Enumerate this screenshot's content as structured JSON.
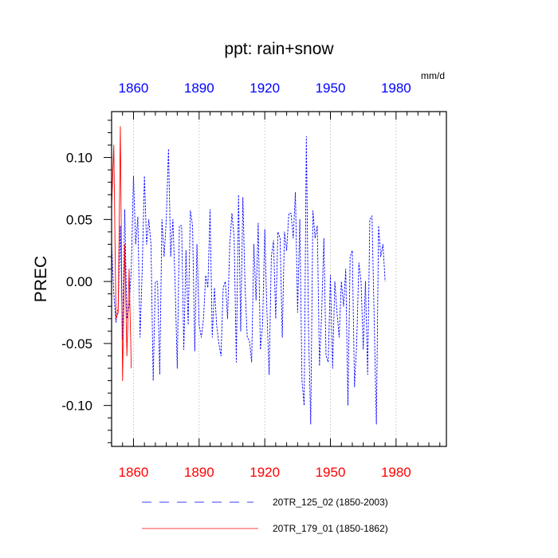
{
  "chart_data": {
    "type": "line",
    "title": "ppt: rain+snow",
    "units": "mm/d",
    "ylabel": "PREC",
    "xlabel": "",
    "xlim": [
      1850,
      2003
    ],
    "ylim": [
      -0.133,
      0.137
    ],
    "x_ticks": [
      1860,
      1890,
      1920,
      1950,
      1980
    ],
    "x_tick_labels": [
      "1860",
      "1890",
      "1920",
      "1950",
      "1980"
    ],
    "y_ticks": [
      0.1,
      0.05,
      0.0,
      -0.05,
      -0.1
    ],
    "y_tick_labels": [
      "0.10",
      "0.05",
      "0.00",
      "-0.05",
      "-0.10"
    ],
    "x_gridlines": [
      1860,
      1890,
      1920,
      1950,
      1980
    ],
    "colors": {
      "series1": "#0000ff",
      "series2": "#ff0000",
      "top_ticks": "#0000ff",
      "bottom_ticks": "#ff0000"
    },
    "series": [
      {
        "name": "20TR_125_02 (1850-2003)",
        "style": "dashed",
        "color": "#0000ff",
        "x_start": 1850,
        "values": [
          0.03,
          -0.01,
          -0.033,
          -0.02,
          0.045,
          -0.047,
          0.058,
          -0.03,
          -0.02,
          0.01,
          0.085,
          0.03,
          0.052,
          -0.045,
          0.01,
          0.085,
          0.03,
          0.05,
          0.03,
          -0.08,
          0.0,
          0.0,
          -0.075,
          0.05,
          0.02,
          0.05,
          0.107,
          0.02,
          0.05,
          0.0,
          -0.07,
          0.045,
          0.045,
          -0.055,
          0.025,
          -0.035,
          0.057,
          0.045,
          -0.056,
          0.03,
          -0.035,
          -0.045,
          -0.03,
          0.005,
          -0.005,
          0.058,
          -0.045,
          -0.005,
          -0.035,
          -0.05,
          -0.06,
          -0.005,
          0.0,
          -0.03,
          0.03,
          0.055,
          0.035,
          -0.065,
          0.07,
          -0.04,
          0.068,
          -0.005,
          -0.045,
          -0.048,
          -0.065,
          0.03,
          -0.015,
          0.047,
          -0.055,
          -0.035,
          0.042,
          -0.025,
          -0.075,
          0.02,
          0.033,
          -0.03,
          0.04,
          0.035,
          -0.045,
          0.04,
          0.025,
          0.055,
          0.055,
          0.035,
          0.072,
          -0.025,
          0.05,
          -0.08,
          -0.1,
          0.117,
          -0.04,
          -0.115,
          0.057,
          0.035,
          0.045,
          -0.068,
          -0.025,
          0.035,
          -0.06,
          -0.065,
          0.005,
          -0.07,
          0.0,
          -0.025,
          -0.045,
          0.0,
          -0.02,
          0.01,
          -0.1,
          0.02,
          0.025,
          -0.085,
          -0.05,
          0.015,
          0.0,
          -0.055,
          0.0,
          -0.075,
          0.05,
          0.053,
          -0.03,
          -0.115,
          0.045,
          0.02,
          0.03,
          0.0
        ]
      },
      {
        "name": "20TR_179_01 (1850-1862)",
        "style": "solid",
        "color": "#ff0000",
        "x_start": 1850,
        "values": [
          0.06,
          0.11,
          -0.03,
          -0.025,
          0.125,
          -0.08,
          0.03,
          -0.06,
          0.01,
          -0.07
        ]
      }
    ],
    "legend_position": "bottom"
  }
}
